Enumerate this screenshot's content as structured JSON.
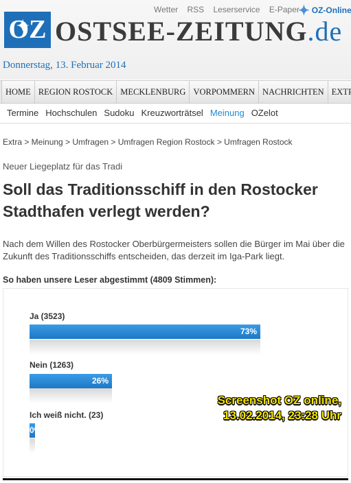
{
  "header": {
    "top_links": [
      "Wetter",
      "RSS",
      "Leserservice",
      "E-Paper"
    ],
    "oz_online": "OZ-Online",
    "logo_text": "OZ",
    "site_name": "OSTSEE-ZEITUNG",
    "site_tld": ".de",
    "date": "Donnerstag, 13. Februar 2014"
  },
  "main_nav": [
    "HOME",
    "REGION ROSTOCK",
    "MECKLENBURG",
    "VORPOMMERN",
    "NACHRICHTEN",
    "EXTRA"
  ],
  "sub_nav": {
    "items": [
      "Termine",
      "Hochschulen",
      "Sudoku",
      "Kreuzworträtsel",
      "Meinung",
      "OZelot"
    ],
    "active": "Meinung"
  },
  "article": {
    "breadcrumb": "Extra > Meinung > Umfragen > Umfragen Region Rostock > Umfragen Rostock",
    "kicker": "Neuer Liegeplatz für das Tradi",
    "headline": "Soll das Traditionsschiff in den Rostocker Stadthafen verlegt werden?",
    "intro": "Nach dem Willen des Rostocker Oberbürgermeisters sollen die Bürger im Mai über die Zukunft des Traditionsschiffs entscheiden, das derzeit im Iga-Park liegt."
  },
  "poll": {
    "heading": "So haben unsere Leser abgestimmt (4809 Stimmen):",
    "options": [
      {
        "label": "Ja (3523)",
        "percent_label": "73%",
        "fraction": 0.73
      },
      {
        "label": "Nein (1263)",
        "percent_label": "26%",
        "fraction": 0.26
      },
      {
        "label": "Ich weiß nicht. (23)",
        "percent_label": "0%",
        "fraction": 0.0
      }
    ]
  },
  "watermark": {
    "line1": "Screenshot OZ online,",
    "line2": "13.02.2014, 23:28 Uhr"
  },
  "colors": {
    "brand_blue": "#1f6fb8",
    "bar_blue": "#1e78c6",
    "watermark_yellow": "#f5e400"
  }
}
